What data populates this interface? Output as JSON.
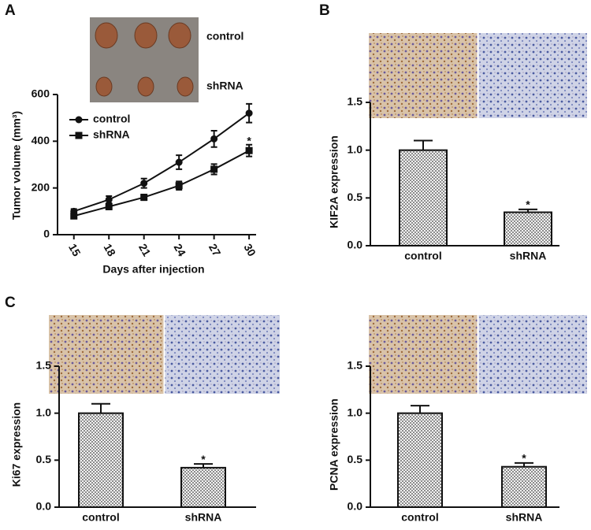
{
  "chart_data": [
    {
      "type": "line",
      "panel": "A",
      "photo_labels": [
        "control",
        "shRNA"
      ],
      "xlabel": "Days after injection",
      "ylabel": "Tumor volume (mm³)",
      "x": [
        15,
        18,
        21,
        24,
        27,
        30
      ],
      "xlim": [
        13.6,
        30.6
      ],
      "xticks": [
        15,
        18,
        21,
        24,
        27,
        30
      ],
      "ylim": [
        0,
        600
      ],
      "yticks": [
        0,
        200,
        400,
        600
      ],
      "series": [
        {
          "name": "control",
          "color": "#111111",
          "marker": "circle",
          "values": [
            100,
            150,
            220,
            310,
            410,
            520
          ],
          "errors": [
            10,
            15,
            20,
            30,
            35,
            40
          ]
        },
        {
          "name": "shRNA",
          "color": "#111111",
          "marker": "square",
          "values": [
            80,
            120,
            160,
            210,
            280,
            360
          ],
          "errors": [
            8,
            12,
            12,
            18,
            22,
            25
          ]
        }
      ],
      "annotation": "*",
      "legend": "upper left"
    },
    {
      "type": "bar",
      "panel": "B",
      "ylabel": "KIF2A expression",
      "color": "#8c8c8c",
      "categories": [
        "control",
        "shRNA"
      ],
      "values": [
        1.0,
        0.35
      ],
      "errors": [
        0.1,
        0.03
      ],
      "ylim": [
        0,
        1.5
      ],
      "yticks": [
        {
          "value": 0,
          "label": "0.0"
        },
        {
          "value": 0.5,
          "label": "0.5"
        },
        {
          "value": 1,
          "label": "1.0"
        },
        {
          "value": 1.5,
          "label": "1.5"
        }
      ],
      "annotation": "*"
    },
    {
      "type": "bar",
      "panel": "C",
      "ylabel": "Ki67 expression",
      "color": "#8c8c8c",
      "categories": [
        "control",
        "shRNA"
      ],
      "values": [
        1.0,
        0.42
      ],
      "errors": [
        0.1,
        0.04
      ],
      "ylim": [
        0,
        1.5
      ],
      "yticks": [
        {
          "value": 0,
          "label": "0.0"
        },
        {
          "value": 0.5,
          "label": "0.5"
        },
        {
          "value": 1,
          "label": "1.0"
        },
        {
          "value": 1.5,
          "label": "1.5"
        }
      ],
      "annotation": "*"
    },
    {
      "type": "bar",
      "ylabel": "PCNA expression",
      "color": "#8c8c8c",
      "categories": [
        "control",
        "shRNA"
      ],
      "values": [
        1.0,
        0.43
      ],
      "errors": [
        0.08,
        0.04
      ],
      "ylim": [
        0,
        1.5
      ],
      "yticks": [
        {
          "value": 0,
          "label": "0.0"
        },
        {
          "value": 0.5,
          "label": "0.5"
        },
        {
          "value": 1,
          "label": "1.0"
        },
        {
          "value": 1.5,
          "label": "1.5"
        }
      ],
      "annotation": "*"
    }
  ]
}
